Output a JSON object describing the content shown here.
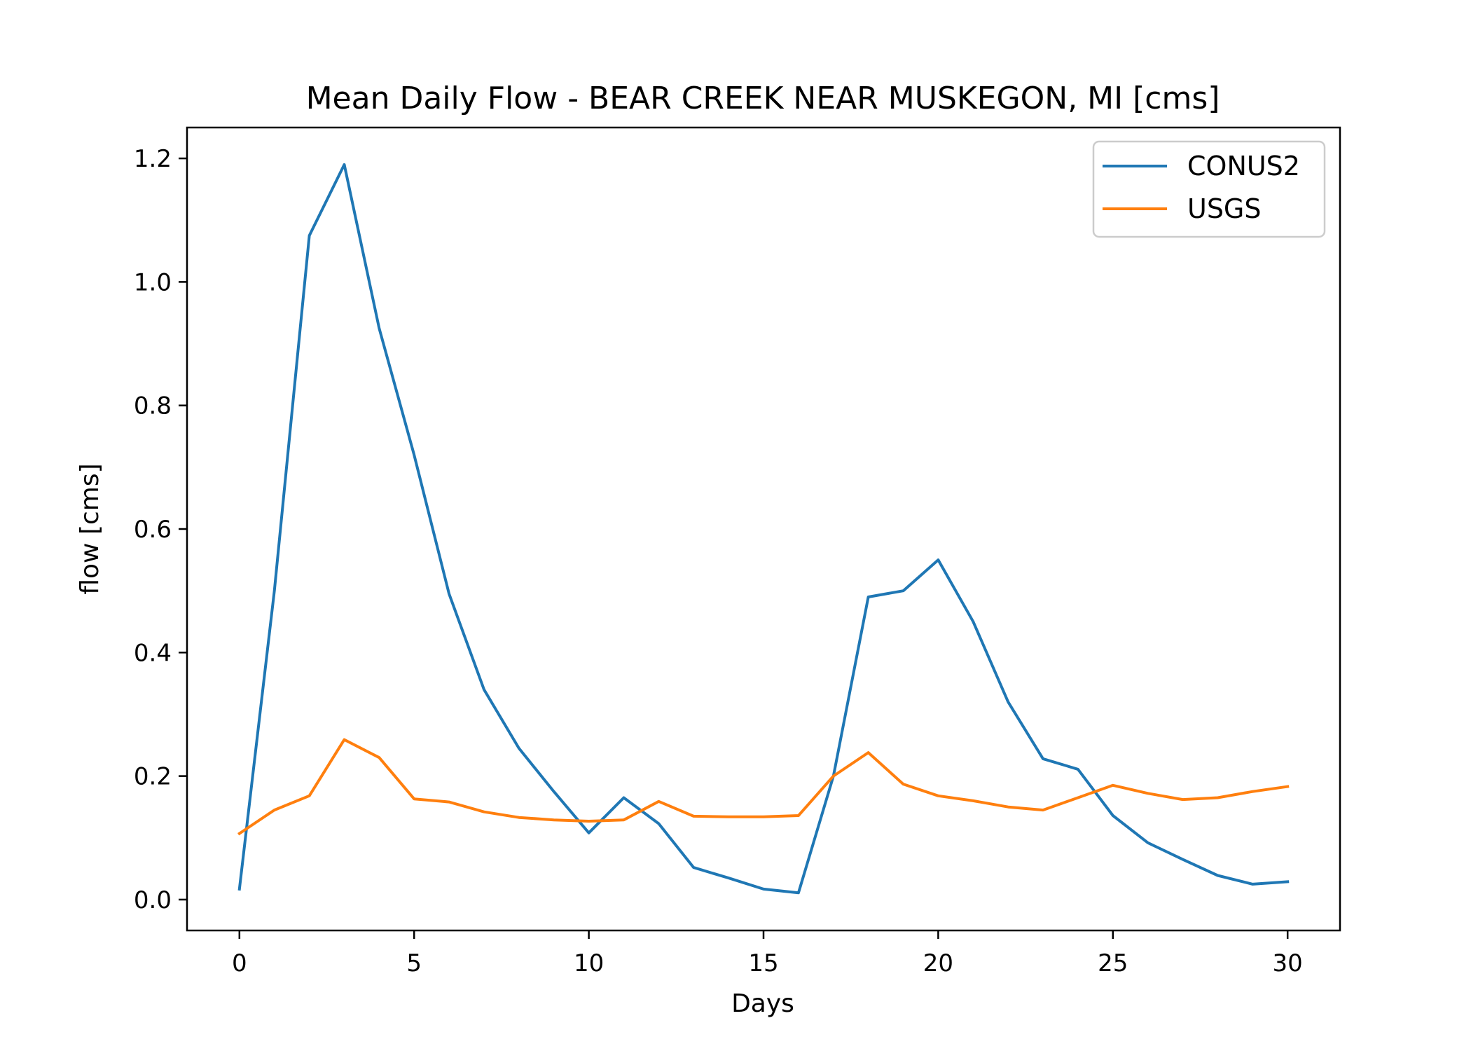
{
  "chart_data": {
    "type": "line",
    "title": "Mean Daily Flow - BEAR CREEK NEAR MUSKEGON, MI [cms]",
    "xlabel": "Days",
    "ylabel": "flow [cms]",
    "xlim": [
      -1.5,
      31.5
    ],
    "ylim": [
      -0.05,
      1.25
    ],
    "xticks": [
      0,
      5,
      10,
      15,
      20,
      25,
      30
    ],
    "yticks": [
      0.0,
      0.2,
      0.4,
      0.6,
      0.8,
      1.0,
      1.2
    ],
    "xtick_labels": [
      "0",
      "5",
      "10",
      "15",
      "20",
      "25",
      "30"
    ],
    "ytick_labels": [
      "0.0",
      "0.2",
      "0.4",
      "0.6",
      "0.8",
      "1.0",
      "1.2"
    ],
    "grid": false,
    "legend_position": "top-right",
    "x": [
      0,
      1,
      2,
      3,
      4,
      5,
      6,
      7,
      8,
      9,
      10,
      11,
      12,
      13,
      14,
      15,
      16,
      17,
      18,
      19,
      20,
      21,
      22,
      23,
      24,
      25,
      26,
      27,
      28,
      29,
      30
    ],
    "series": [
      {
        "name": "CONUS2",
        "color": "#1f77b4",
        "values": [
          0.017,
          0.5,
          1.075,
          1.19,
          0.925,
          0.72,
          0.495,
          0.34,
          0.245,
          0.175,
          0.108,
          0.165,
          0.123,
          0.052,
          0.035,
          0.017,
          0.011,
          0.2,
          0.49,
          0.5,
          0.55,
          0.45,
          0.32,
          0.228,
          0.211,
          0.136,
          0.092,
          0.065,
          0.039,
          0.025,
          0.029
        ]
      },
      {
        "name": "USGS",
        "color": "#ff7f0e",
        "values": [
          0.107,
          0.145,
          0.168,
          0.259,
          0.23,
          0.163,
          0.158,
          0.142,
          0.133,
          0.129,
          0.127,
          0.129,
          0.159,
          0.135,
          0.134,
          0.134,
          0.136,
          0.2,
          0.238,
          0.187,
          0.168,
          0.16,
          0.15,
          0.145,
          0.165,
          0.185,
          0.172,
          0.162,
          0.165,
          0.175,
          0.183
        ]
      }
    ]
  }
}
